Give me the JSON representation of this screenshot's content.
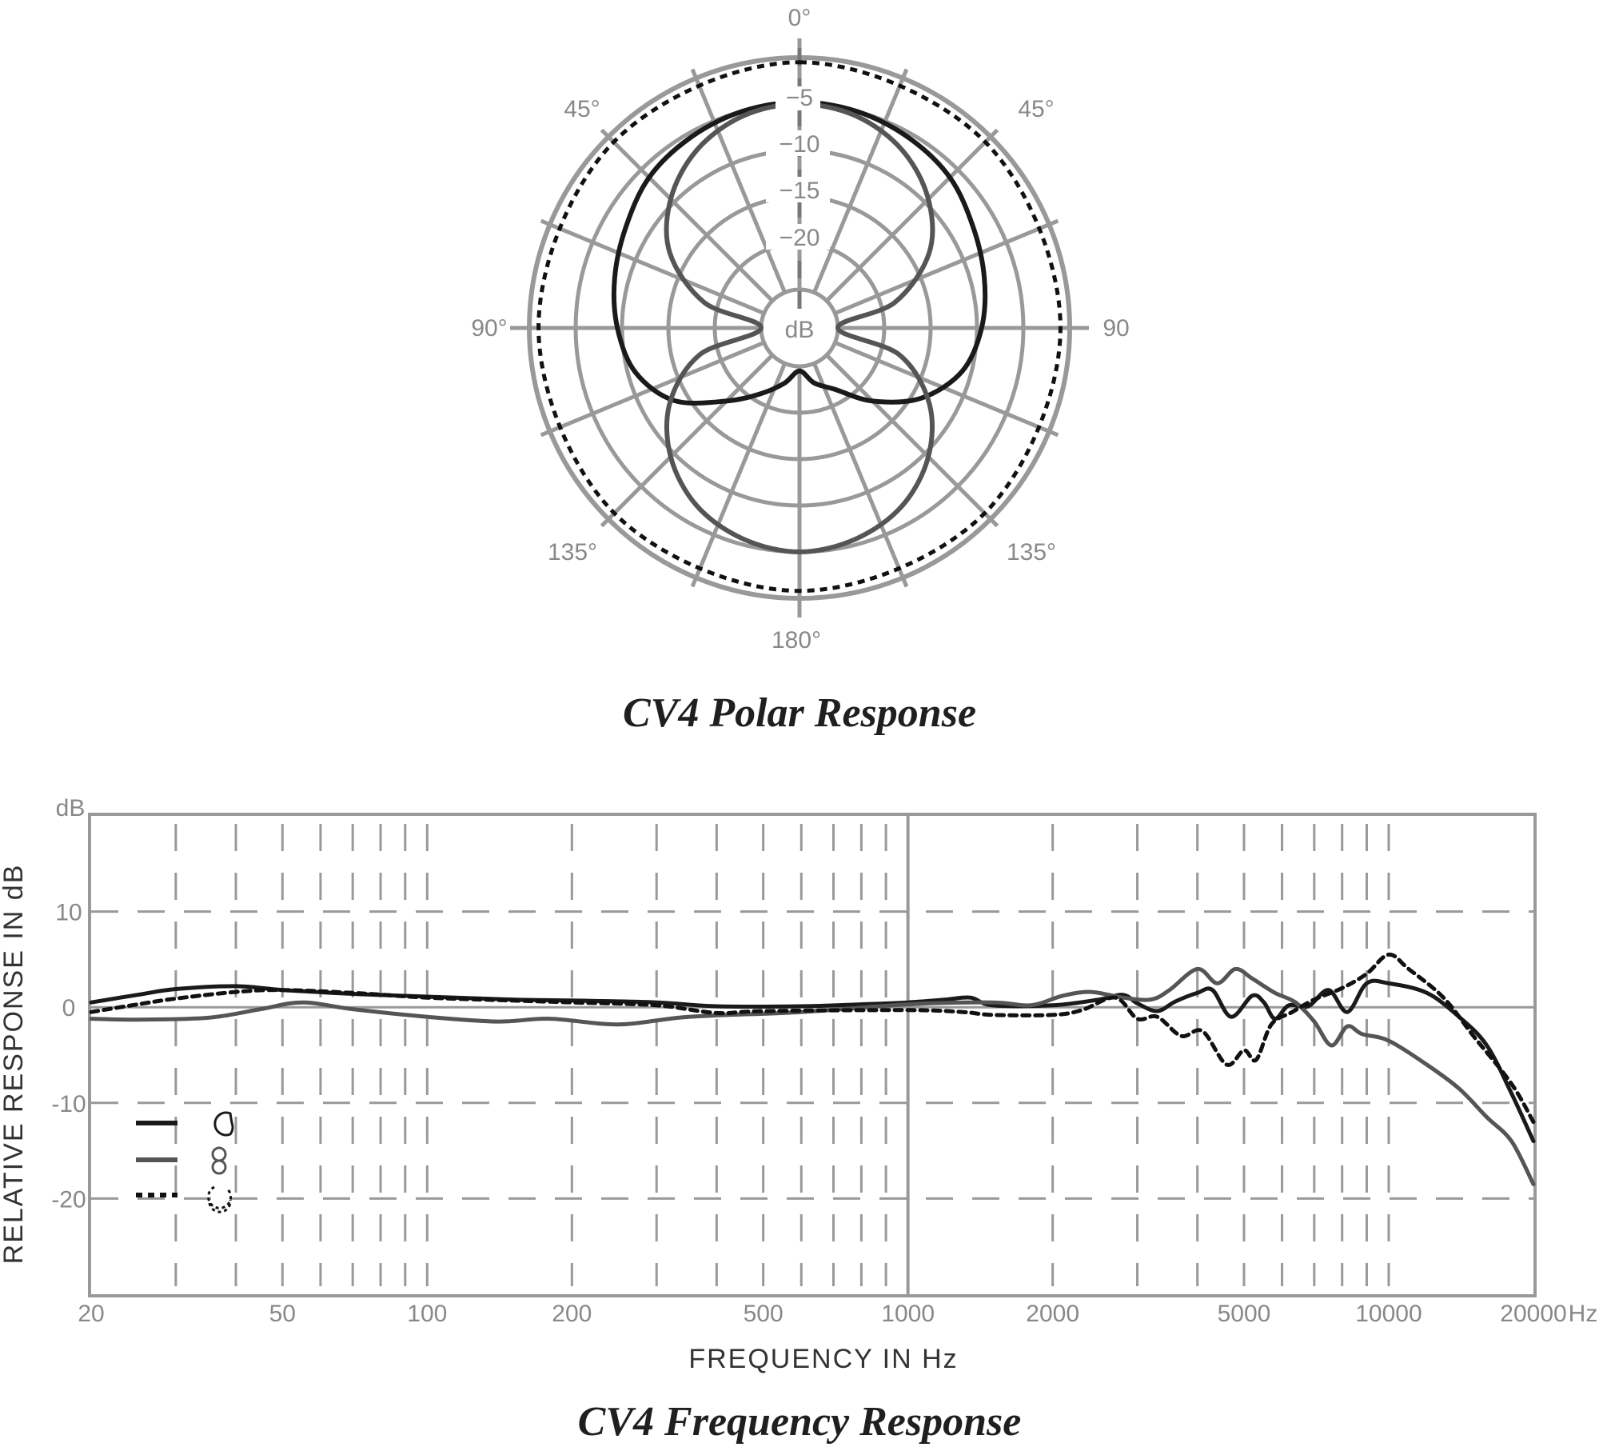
{
  "chart_data": [
    {
      "type": "polar",
      "title": "CV4  Polar Response",
      "angle_labels": {
        "top": "0°",
        "upper_left": "45°",
        "upper_right": "45°",
        "left": "90°",
        "right": "90",
        "lower_left": "135°",
        "lower_right": "135°",
        "bottom": "180°"
      },
      "ring_labels": [
        "−5",
        "−10",
        "−15",
        "−20",
        "dB"
      ],
      "ring_levels_db": [
        0,
        -5,
        -10,
        -15,
        -20,
        -25
      ],
      "series": [
        {
          "pattern": "cardioid",
          "color": "#1a1a1a",
          "style": "solid",
          "points_deg_db": [
            [
              0,
              -4.8
            ],
            [
              15,
              -5
            ],
            [
              30,
              -5.5
            ],
            [
              45,
              -6.2
            ],
            [
              60,
              -7.5
            ],
            [
              75,
              -8.5
            ],
            [
              90,
              -9.5
            ],
            [
              105,
              -11
            ],
            [
              120,
              -14
            ],
            [
              135,
              -18
            ],
            [
              150,
              -21.5
            ],
            [
              165,
              -23
            ],
            [
              180,
              -24.5
            ],
            [
              195,
              -23
            ],
            [
              210,
              -21
            ],
            [
              225,
              -18
            ],
            [
              240,
              -13.5
            ],
            [
              255,
              -10.8
            ],
            [
              270,
              -9.5
            ],
            [
              285,
              -8.5
            ],
            [
              300,
              -7.5
            ],
            [
              315,
              -6.2
            ],
            [
              330,
              -5.5
            ],
            [
              345,
              -5
            ]
          ]
        },
        {
          "pattern": "figure-8",
          "color": "#555555",
          "style": "solid",
          "points_deg_db": [
            [
              0,
              -5
            ],
            [
              15,
              -5.5
            ],
            [
              30,
              -7
            ],
            [
              45,
              -9.5
            ],
            [
              60,
              -13
            ],
            [
              75,
              -18.5
            ],
            [
              90,
              -25
            ],
            [
              105,
              -18
            ],
            [
              120,
              -13
            ],
            [
              135,
              -9.5
            ],
            [
              150,
              -7
            ],
            [
              165,
              -5.6
            ],
            [
              180,
              -5
            ],
            [
              195,
              -5.6
            ],
            [
              210,
              -7
            ],
            [
              225,
              -9.5
            ],
            [
              240,
              -13
            ],
            [
              255,
              -18
            ],
            [
              270,
              -25
            ],
            [
              285,
              -18.5
            ],
            [
              300,
              -13
            ],
            [
              315,
              -9.5
            ],
            [
              330,
              -7
            ],
            [
              345,
              -5.5
            ]
          ]
        },
        {
          "pattern": "omni",
          "color": "#111111",
          "style": "dotted",
          "points_deg_db": [
            [
              0,
              -0.5
            ],
            [
              45,
              -0.8
            ],
            [
              90,
              -1.0
            ],
            [
              135,
              -0.9
            ],
            [
              180,
              -0.8
            ],
            [
              225,
              -0.9
            ],
            [
              270,
              -1.0
            ],
            [
              315,
              -0.8
            ]
          ]
        }
      ]
    },
    {
      "type": "line",
      "title": "CV4 Frequency Response",
      "xlabel": "FREQUENCY  IN  Hz",
      "ylabel": "RELATIVE RESPONSE IN dB",
      "yunit_label": "dB",
      "xunit_label": "Hz",
      "xscale": "log",
      "xlim": [
        20,
        20000
      ],
      "ylim": [
        -30,
        20
      ],
      "x_tick_labels": [
        "20",
        "50",
        "100",
        "200",
        "500",
        "1000",
        "2000",
        "5000",
        "10000",
        "20000"
      ],
      "y_tick_labels": [
        "10",
        "0",
        "-10",
        "-20"
      ],
      "y_ticks": [
        10,
        0,
        -10,
        -20
      ],
      "grid": true,
      "legend": {
        "placement": "lower-left",
        "entries": [
          {
            "pattern": "cardioid",
            "style": "solid",
            "color": "#1a1a1a"
          },
          {
            "pattern": "figure-8",
            "style": "solid",
            "color": "#555555"
          },
          {
            "pattern": "omni",
            "style": "dotted",
            "color": "#111111"
          }
        ]
      },
      "series": [
        {
          "pattern": "cardioid",
          "color": "#1a1a1a",
          "style": "solid",
          "points": [
            [
              20,
              0.5
            ],
            [
              25,
              1.3
            ],
            [
              30,
              1.9
            ],
            [
              40,
              2.2
            ],
            [
              50,
              1.8
            ],
            [
              70,
              1.4
            ],
            [
              100,
              1.1
            ],
            [
              150,
              0.8
            ],
            [
              200,
              0.7
            ],
            [
              300,
              0.5
            ],
            [
              400,
              0.1
            ],
            [
              600,
              0.1
            ],
            [
              800,
              0.3
            ],
            [
              1000,
              0.5
            ],
            [
              1200,
              0.8
            ],
            [
              1350,
              1.0
            ],
            [
              1500,
              0.2
            ],
            [
              2000,
              0.2
            ],
            [
              2500,
              0.8
            ],
            [
              2800,
              1.3
            ],
            [
              3000,
              0.4
            ],
            [
              3300,
              -0.4
            ],
            [
              3600,
              0.6
            ],
            [
              4000,
              1.5
            ],
            [
              4300,
              1.8
            ],
            [
              4700,
              -1.0
            ],
            [
              5200,
              1.2
            ],
            [
              5500,
              0.5
            ],
            [
              5800,
              -1.2
            ],
            [
              6200,
              0.2
            ],
            [
              6800,
              0.1
            ],
            [
              7500,
              1.8
            ],
            [
              8200,
              -0.5
            ],
            [
              9000,
              2.5
            ],
            [
              10000,
              2.5
            ],
            [
              12000,
              1.5
            ],
            [
              14000,
              -1
            ],
            [
              16000,
              -4
            ],
            [
              18000,
              -9
            ],
            [
              20000,
              -14
            ]
          ]
        },
        {
          "pattern": "figure-8",
          "color": "#555555",
          "style": "solid",
          "points": [
            [
              20,
              -1.2
            ],
            [
              25,
              -1.3
            ],
            [
              35,
              -1.1
            ],
            [
              45,
              -0.2
            ],
            [
              55,
              0.5
            ],
            [
              70,
              -0.2
            ],
            [
              100,
              -1
            ],
            [
              140,
              -1.5
            ],
            [
              180,
              -1.2
            ],
            [
              250,
              -1.8
            ],
            [
              350,
              -1
            ],
            [
              600,
              -0.5
            ],
            [
              1000,
              0.3
            ],
            [
              1500,
              0.5
            ],
            [
              1800,
              0.2
            ],
            [
              2100,
              1.2
            ],
            [
              2400,
              1.6
            ],
            [
              2800,
              1
            ],
            [
              3200,
              0.8
            ],
            [
              3500,
              1.8
            ],
            [
              4000,
              4
            ],
            [
              4400,
              2.5
            ],
            [
              4800,
              4
            ],
            [
              5200,
              3
            ],
            [
              5800,
              1.5
            ],
            [
              6400,
              0.5
            ],
            [
              7000,
              -1.5
            ],
            [
              7600,
              -4
            ],
            [
              8200,
              -2
            ],
            [
              8800,
              -2.8
            ],
            [
              10000,
              -3.5
            ],
            [
              12000,
              -6
            ],
            [
              14000,
              -8.5
            ],
            [
              16000,
              -11.5
            ],
            [
              18000,
              -14
            ],
            [
              20000,
              -18.5
            ]
          ]
        },
        {
          "pattern": "omni",
          "color": "#111111",
          "style": "dotted",
          "points": [
            [
              20,
              -0.5
            ],
            [
              25,
              0.3
            ],
            [
              30,
              0.9
            ],
            [
              40,
              1.6
            ],
            [
              50,
              1.8
            ],
            [
              70,
              1.5
            ],
            [
              100,
              1.0
            ],
            [
              150,
              0.7
            ],
            [
              200,
              0.5
            ],
            [
              300,
              0.2
            ],
            [
              400,
              -0.6
            ],
            [
              500,
              -0.4
            ],
            [
              1000,
              -0.3
            ],
            [
              1300,
              -0.5
            ],
            [
              1500,
              -0.8
            ],
            [
              2000,
              -0.8
            ],
            [
              2300,
              -0.3
            ],
            [
              2700,
              1.0
            ],
            [
              3000,
              -1.2
            ],
            [
              3300,
              -1
            ],
            [
              3700,
              -3
            ],
            [
              4100,
              -2.5
            ],
            [
              4600,
              -6
            ],
            [
              5000,
              -4.5
            ],
            [
              5300,
              -5.5
            ],
            [
              5700,
              -1.8
            ],
            [
              6300,
              -0.5
            ],
            [
              7000,
              0.8
            ],
            [
              8000,
              2
            ],
            [
              9000,
              3.5
            ],
            [
              10000,
              5.5
            ],
            [
              11000,
              4
            ],
            [
              13000,
              1
            ],
            [
              15000,
              -3
            ],
            [
              18000,
              -8
            ],
            [
              20000,
              -12
            ]
          ]
        }
      ]
    }
  ]
}
